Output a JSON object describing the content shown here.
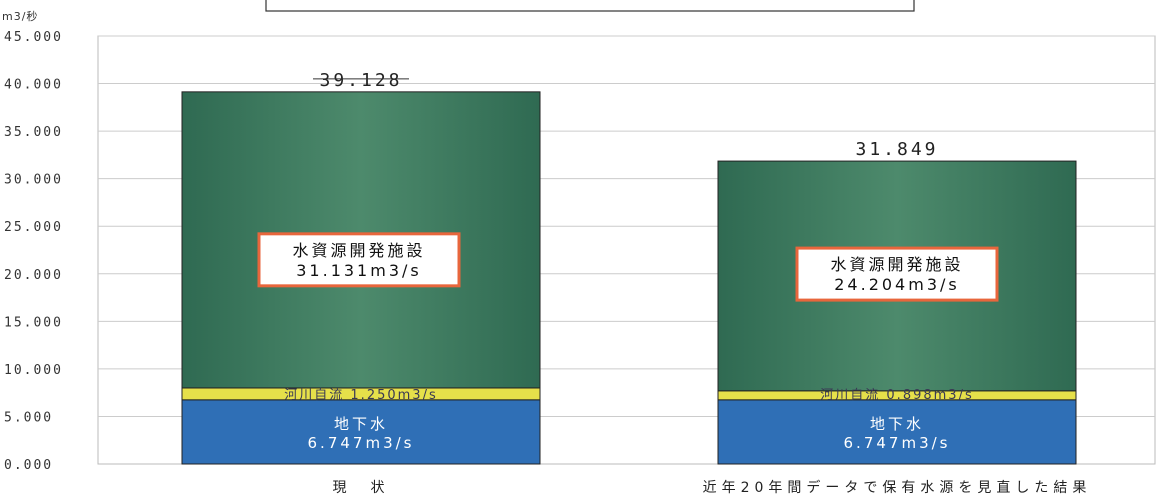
{
  "chart_data": {
    "type": "bar",
    "stacked": true,
    "ylabel": "m3/秒",
    "ylim": [
      0,
      45
    ],
    "yticks": [
      "0.000",
      "5.000",
      "10.000",
      "15.000",
      "20.000",
      "25.000",
      "30.000",
      "35.000",
      "40.000",
      "45.000"
    ],
    "grid": true,
    "categories": [
      "現　状",
      "近年20年間データで保有水源を見直した結果"
    ],
    "totals": [
      "39.128",
      "31.849"
    ],
    "series": [
      {
        "key": "groundwater",
        "color": "#2f6fb6",
        "values": [
          6.747,
          6.747
        ],
        "labels": [
          {
            "name": "地下水",
            "value": "6.747m3/s"
          },
          {
            "name": "地下水",
            "value": "6.747m3/s"
          }
        ]
      },
      {
        "key": "river",
        "color": "#e6e04a",
        "values": [
          1.25,
          0.898
        ],
        "labels": [
          "河川自流 1.250m3/s",
          "河川自流 0.898m3/s"
        ]
      },
      {
        "key": "facilities",
        "color": "#3d7a60",
        "values": [
          31.131,
          24.204
        ],
        "labels": [
          {
            "name": "水資源開発施設",
            "value": "31.131m3/s"
          },
          {
            "name": "水資源開発施設",
            "value": "24.204m3/s"
          }
        ]
      }
    ]
  },
  "colors": {
    "box_border": "#e8663c",
    "grid": "#cccccc"
  }
}
